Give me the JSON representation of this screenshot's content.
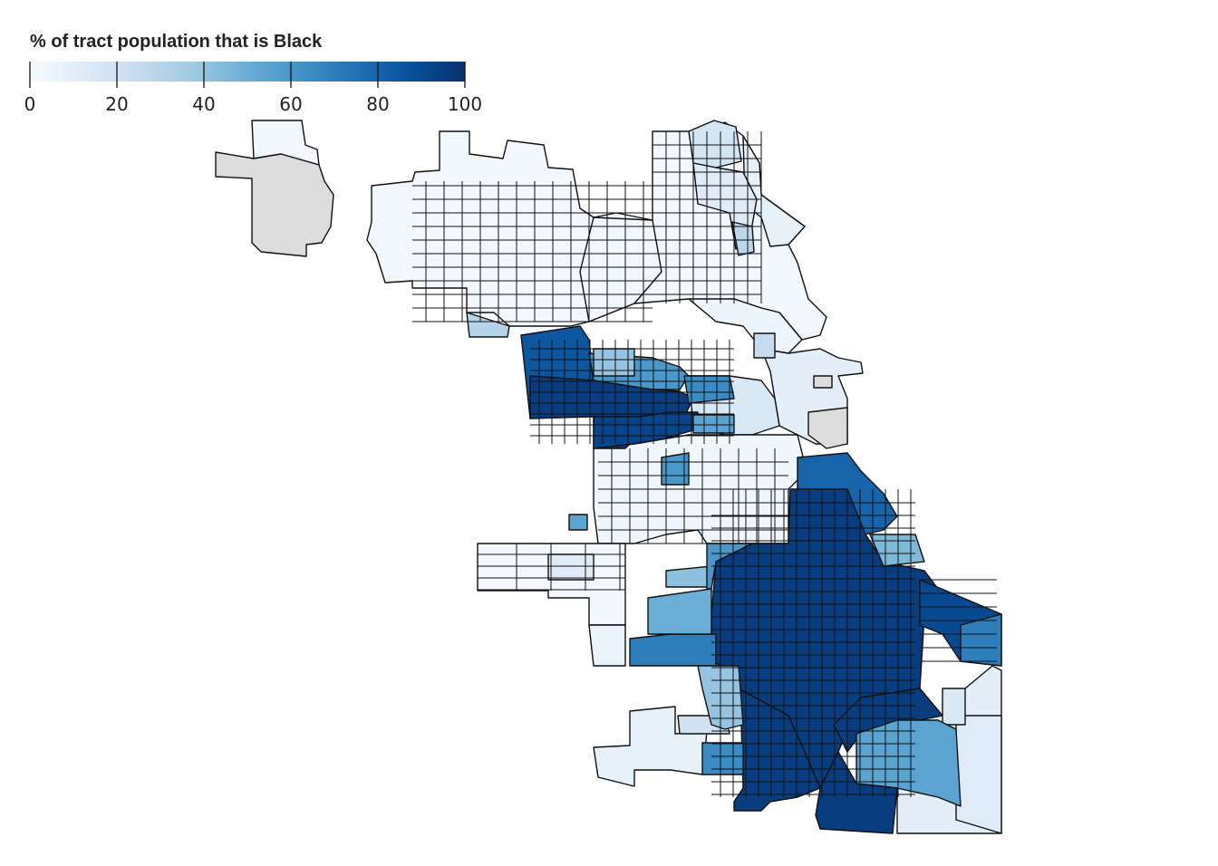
{
  "legend": {
    "title": "% of tract population that is Black",
    "ticks": [
      "0",
      "20",
      "40",
      "60",
      "80",
      "100"
    ],
    "domain": [
      0,
      100
    ],
    "gradient_colors": [
      "#f7fbff",
      "#deebf7",
      "#c6dbef",
      "#9ecae1",
      "#6baed6",
      "#4292c6",
      "#2171b5",
      "#08519c",
      "#08306b"
    ]
  },
  "map": {
    "no_data_color": "#dcdcdc",
    "boundary_color": "#111111"
  }
}
